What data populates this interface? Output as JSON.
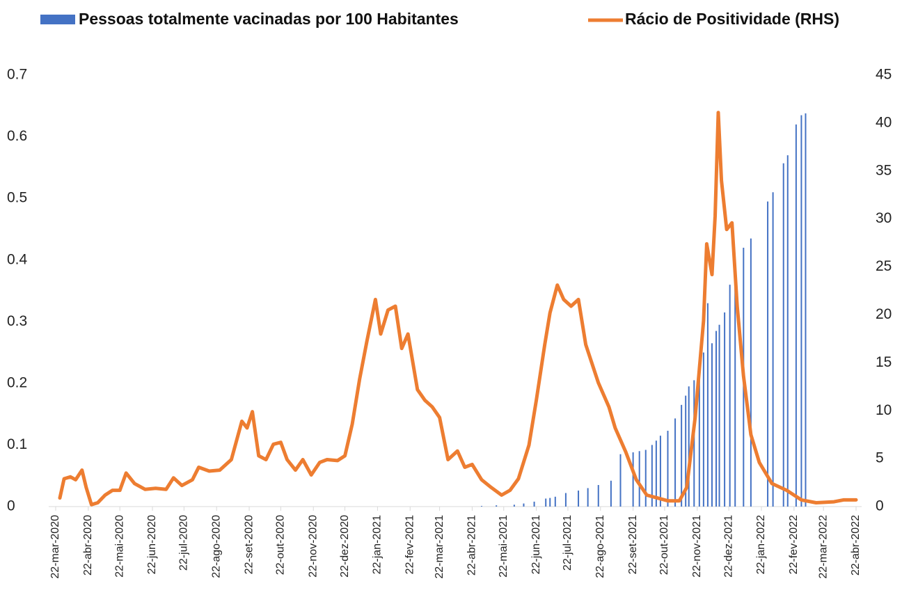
{
  "chart_data": {
    "type": "bar-line",
    "legend": "top",
    "xlim": [
      "2020-03-22",
      "2022-04-22"
    ],
    "xticks": [
      {
        "value": "2020-03-22",
        "label": "22-mar-2020"
      },
      {
        "value": "2020-04-22",
        "label": "22-abr-2020"
      },
      {
        "value": "2020-05-22",
        "label": "22-mai-2020"
      },
      {
        "value": "2020-06-22",
        "label": "22-jun-2020"
      },
      {
        "value": "2020-07-22",
        "label": "22-jul-2020"
      },
      {
        "value": "2020-08-22",
        "label": "22-ago-2020"
      },
      {
        "value": "2020-09-22",
        "label": "22-set-2020"
      },
      {
        "value": "2020-10-22",
        "label": "22-out-2020"
      },
      {
        "value": "2020-11-22",
        "label": "22-nov-2020"
      },
      {
        "value": "2020-12-22",
        "label": "22-dez-2020"
      },
      {
        "value": "2021-01-22",
        "label": "22-jan-2021"
      },
      {
        "value": "2021-02-22",
        "label": "22-fev-2021"
      },
      {
        "value": "2021-03-22",
        "label": "22-mar-2021"
      },
      {
        "value": "2021-04-22",
        "label": "22-abr-2021"
      },
      {
        "value": "2021-05-22",
        "label": "22-mai-2021"
      },
      {
        "value": "2021-06-22",
        "label": "22-jun-2021"
      },
      {
        "value": "2021-07-22",
        "label": "22-jul-2021"
      },
      {
        "value": "2021-08-22",
        "label": "22-ago-2021"
      },
      {
        "value": "2021-09-22",
        "label": "22-set-2021"
      },
      {
        "value": "2021-10-22",
        "label": "22-out-2021"
      },
      {
        "value": "2021-11-22",
        "label": "22-nov-2021"
      },
      {
        "value": "2021-12-22",
        "label": "22-dez-2021"
      },
      {
        "value": "2022-01-22",
        "label": "22-jan-2022"
      },
      {
        "value": "2022-02-22",
        "label": "22-fev-2022"
      },
      {
        "value": "2022-03-22",
        "label": "22-mar-2022"
      },
      {
        "value": "2022-04-22",
        "label": "22-abr-2022"
      }
    ],
    "ylim": [
      0,
      0.7
    ],
    "yticks": [
      0,
      0.1,
      0.2,
      0.3,
      0.4,
      0.5,
      0.6,
      0.7
    ],
    "y2lim": [
      0,
      45
    ],
    "y2ticks": [
      0,
      5,
      10,
      15,
      20,
      25,
      30,
      35,
      40,
      45
    ],
    "series": [
      {
        "name": "Pessoas totalmente vacinadas por 100 Habitantes",
        "type": "bar",
        "color": "#4472c4",
        "x": [
          "2021-05-01",
          "2021-05-15",
          "2021-06-01",
          "2021-06-10",
          "2021-06-20",
          "2021-07-01",
          "2021-07-05",
          "2021-07-10",
          "2021-07-20",
          "2021-08-01",
          "2021-08-10",
          "2021-08-20",
          "2021-09-01",
          "2021-09-10",
          "2021-09-22",
          "2021-09-28",
          "2021-10-04",
          "2021-10-10",
          "2021-10-14",
          "2021-10-18",
          "2021-10-25",
          "2021-11-01",
          "2021-11-07",
          "2021-11-11",
          "2021-11-14",
          "2021-11-19",
          "2021-11-24",
          "2021-11-28",
          "2021-12-02",
          "2021-12-06",
          "2021-12-10",
          "2021-12-13",
          "2021-12-18",
          "2021-12-23",
          "2021-12-28",
          "2022-01-05",
          "2022-01-12",
          "2022-01-28",
          "2022-02-02",
          "2022-02-12",
          "2022-02-16",
          "2022-02-24",
          "2022-03-01",
          "2022-03-05"
        ],
        "values": [
          0.001,
          0.002,
          0.003,
          0.005,
          0.008,
          0.013,
          0.014,
          0.016,
          0.022,
          0.026,
          0.03,
          0.035,
          0.042,
          0.085,
          0.088,
          0.09,
          0.092,
          0.1,
          0.107,
          0.115,
          0.123,
          0.143,
          0.165,
          0.18,
          0.195,
          0.205,
          0.225,
          0.25,
          0.33,
          0.265,
          0.285,
          0.295,
          0.315,
          0.36,
          0.4,
          0.42,
          0.435,
          0.495,
          0.51,
          0.557,
          0.57,
          0.62,
          0.635,
          0.638
        ]
      },
      {
        "name": "Rácio de Positividade (RHS)",
        "type": "line",
        "axis": "y2",
        "color": "#ed7d31",
        "x": [
          "2020-03-26",
          "2020-03-30",
          "2020-04-05",
          "2020-04-10",
          "2020-04-16",
          "2020-04-20",
          "2020-04-25",
          "2020-05-01",
          "2020-05-08",
          "2020-05-15",
          "2020-05-22",
          "2020-05-28",
          "2020-06-05",
          "2020-06-15",
          "2020-06-25",
          "2020-07-05",
          "2020-07-12",
          "2020-07-20",
          "2020-07-30",
          "2020-08-05",
          "2020-08-15",
          "2020-08-25",
          "2020-09-05",
          "2020-09-15",
          "2020-09-20",
          "2020-09-25",
          "2020-10-01",
          "2020-10-08",
          "2020-10-15",
          "2020-10-22",
          "2020-10-28",
          "2020-11-05",
          "2020-11-12",
          "2020-11-20",
          "2020-11-28",
          "2020-12-05",
          "2020-12-15",
          "2020-12-22",
          "2020-12-29",
          "2021-01-05",
          "2021-01-12",
          "2021-01-20",
          "2021-01-25",
          "2021-02-01",
          "2021-02-08",
          "2021-02-14",
          "2021-02-20",
          "2021-03-01",
          "2021-03-08",
          "2021-03-15",
          "2021-03-22",
          "2021-03-30",
          "2021-04-08",
          "2021-04-15",
          "2021-04-22",
          "2021-05-01",
          "2021-05-10",
          "2021-05-20",
          "2021-05-28",
          "2021-06-05",
          "2021-06-15",
          "2021-06-22",
          "2021-06-30",
          "2021-07-05",
          "2021-07-12",
          "2021-07-18",
          "2021-07-25",
          "2021-08-01",
          "2021-08-08",
          "2021-08-20",
          "2021-08-30",
          "2021-09-05",
          "2021-09-15",
          "2021-09-25",
          "2021-10-05",
          "2021-10-15",
          "2021-10-25",
          "2021-11-05",
          "2021-11-12",
          "2021-11-20",
          "2021-11-28",
          "2021-12-01",
          "2021-12-06",
          "2021-12-09",
          "2021-12-12",
          "2021-12-15",
          "2021-12-20",
          "2021-12-25",
          "2021-12-30",
          "2022-01-05",
          "2022-01-12",
          "2022-01-20",
          "2022-02-01",
          "2022-02-15",
          "2022-03-01",
          "2022-03-15",
          "2022-04-01",
          "2022-04-10",
          "2022-04-22"
        ],
        "values": [
          0.9,
          2.9,
          3.1,
          2.8,
          3.8,
          2.0,
          0.2,
          0.4,
          1.2,
          1.7,
          1.7,
          3.5,
          2.4,
          1.8,
          1.9,
          1.8,
          3.0,
          2.2,
          2.8,
          4.1,
          3.7,
          3.8,
          4.9,
          8.9,
          8.2,
          9.9,
          5.3,
          4.9,
          6.5,
          6.7,
          4.9,
          3.8,
          4.9,
          3.3,
          4.6,
          4.9,
          4.8,
          5.3,
          8.6,
          13.3,
          17.3,
          21.6,
          18.0,
          20.5,
          20.9,
          16.5,
          18.0,
          12.2,
          11.1,
          10.4,
          9.3,
          4.9,
          5.8,
          4.1,
          4.4,
          2.8,
          2.0,
          1.2,
          1.7,
          2.9,
          6.4,
          11.1,
          16.9,
          20.2,
          23.1,
          21.6,
          20.9,
          21.6,
          16.9,
          12.9,
          10.4,
          8.2,
          5.7,
          2.8,
          1.2,
          0.9,
          0.6,
          0.6,
          2.0,
          9.3,
          19.4,
          27.4,
          24.2,
          30.3,
          41.1,
          34.0,
          28.9,
          29.6,
          20.9,
          13.6,
          7.5,
          4.6,
          2.4,
          1.7,
          0.7,
          0.4,
          0.5,
          0.7,
          0.7
        ]
      }
    ]
  }
}
